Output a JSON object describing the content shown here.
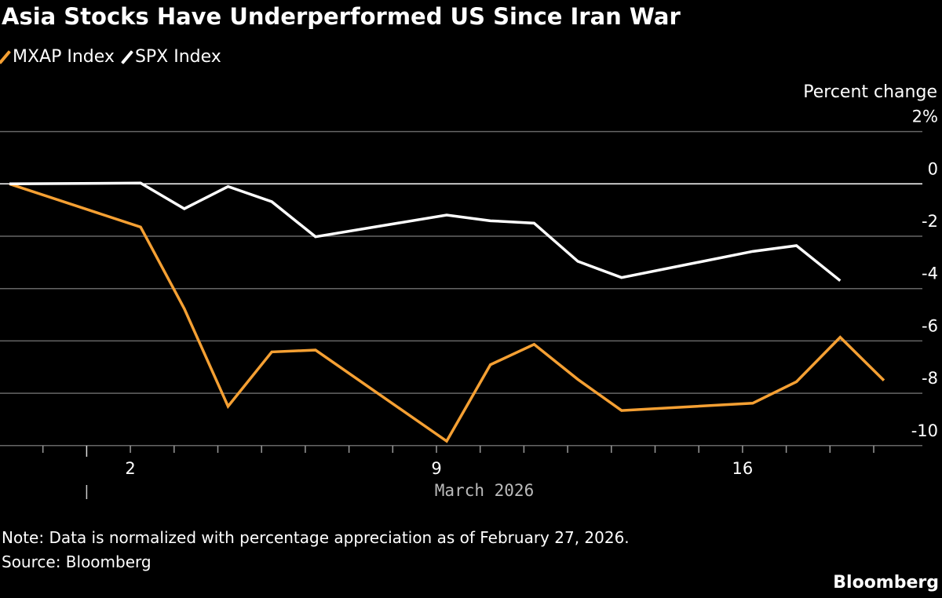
{
  "chart_data": {
    "type": "line",
    "title": "Asia Stocks Have Underperformed US Since Iran War",
    "ylabel": "Percent change",
    "xlabel": "March 2026",
    "ylim": [
      -10,
      2
    ],
    "yticks": [
      2,
      0,
      -2,
      -4,
      -6,
      -8,
      -10
    ],
    "ytick_labels": [
      "2%",
      "0",
      "-2",
      "-4",
      "-6",
      "-8",
      "-10"
    ],
    "xtick_labels": [
      {
        "date": "2026-03-02",
        "label": "2"
      },
      {
        "date": "2026-03-09",
        "label": "9"
      },
      {
        "date": "2026-03-16",
        "label": "16"
      }
    ],
    "grid": true,
    "legend": "top-left",
    "series": [
      {
        "name": "MXAP Index",
        "color": "#f5a033",
        "x": [
          "2026-02-27",
          "2026-03-02",
          "2026-03-03",
          "2026-03-04",
          "2026-03-05",
          "2026-03-06",
          "2026-03-09",
          "2026-03-10",
          "2026-03-11",
          "2026-03-12",
          "2026-03-13",
          "2026-03-16",
          "2026-03-17",
          "2026-03-18",
          "2026-03-19"
        ],
        "values": [
          0,
          -1.65,
          -4.77,
          -8.5,
          -6.42,
          -6.35,
          -9.83,
          -6.91,
          -6.13,
          -7.47,
          -8.66,
          -8.38,
          -7.56,
          -5.86,
          -7.51
        ]
      },
      {
        "name": "SPX Index",
        "color": "#ffffff",
        "x": [
          "2026-02-27",
          "2026-03-02",
          "2026-03-03",
          "2026-03-04",
          "2026-03-05",
          "2026-03-06",
          "2026-03-09",
          "2026-03-10",
          "2026-03-11",
          "2026-03-12",
          "2026-03-13",
          "2026-03-16",
          "2026-03-17",
          "2026-03-18"
        ],
        "values": [
          0,
          0.03,
          -0.95,
          -0.1,
          -0.68,
          -2.02,
          -1.19,
          -1.41,
          -1.5,
          -2.96,
          -3.58,
          -2.58,
          -2.36,
          -3.7
        ]
      }
    ]
  },
  "footer": {
    "note": "Note: Data is normalized with percentage appreciation as of February 27, 2026.",
    "source": "Source: Bloomberg",
    "brand": "Bloomberg"
  }
}
